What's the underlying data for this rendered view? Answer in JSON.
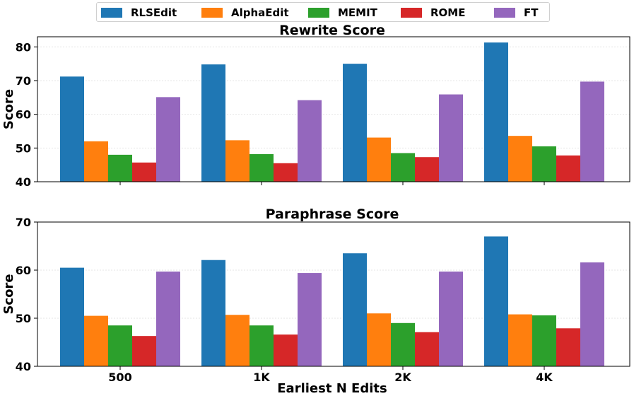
{
  "legend": {
    "items": [
      {
        "name": "RLSEdit",
        "color": "#1f77b4"
      },
      {
        "name": "AlphaEdit",
        "color": "#ff7f0e"
      },
      {
        "name": "MEMIT",
        "color": "#2ca02c"
      },
      {
        "name": "ROME",
        "color": "#d62728"
      },
      {
        "name": "FT",
        "color": "#9467bd"
      }
    ]
  },
  "chart_data": [
    {
      "type": "bar",
      "title": "Rewrite Score",
      "ylabel": "Score",
      "xlabel": "",
      "ylim": [
        40,
        83
      ],
      "yticks": [
        40,
        50,
        60,
        70,
        80
      ],
      "categories": [
        "500",
        "1K",
        "2K",
        "4K"
      ],
      "series": [
        {
          "name": "RLSEdit",
          "color": "#1f77b4",
          "values": [
            71.2,
            74.8,
            75.0,
            81.3
          ]
        },
        {
          "name": "AlphaEdit",
          "color": "#ff7f0e",
          "values": [
            52.0,
            52.3,
            53.1,
            53.6
          ]
        },
        {
          "name": "MEMIT",
          "color": "#2ca02c",
          "values": [
            48.0,
            48.2,
            48.5,
            50.5
          ]
        },
        {
          "name": "ROME",
          "color": "#d62728",
          "values": [
            45.7,
            45.5,
            47.3,
            47.8
          ]
        },
        {
          "name": "FT",
          "color": "#9467bd",
          "values": [
            65.1,
            64.2,
            65.9,
            69.7
          ]
        }
      ]
    },
    {
      "type": "bar",
      "title": "Paraphrase Score",
      "ylabel": "Score",
      "xlabel": "Earliest N Edits",
      "ylim": [
        40,
        70
      ],
      "yticks": [
        40,
        50,
        60,
        70
      ],
      "categories": [
        "500",
        "1K",
        "2K",
        "4K"
      ],
      "series": [
        {
          "name": "RLSEdit",
          "color": "#1f77b4",
          "values": [
            60.5,
            62.1,
            63.5,
            67.0
          ]
        },
        {
          "name": "AlphaEdit",
          "color": "#ff7f0e",
          "values": [
            50.5,
            50.7,
            51.0,
            50.8
          ]
        },
        {
          "name": "MEMIT",
          "color": "#2ca02c",
          "values": [
            48.5,
            48.5,
            49.0,
            50.6
          ]
        },
        {
          "name": "ROME",
          "color": "#d62728",
          "values": [
            46.3,
            46.6,
            47.1,
            47.9
          ]
        },
        {
          "name": "FT",
          "color": "#9467bd",
          "values": [
            59.7,
            59.4,
            59.7,
            61.6
          ]
        }
      ]
    }
  ]
}
